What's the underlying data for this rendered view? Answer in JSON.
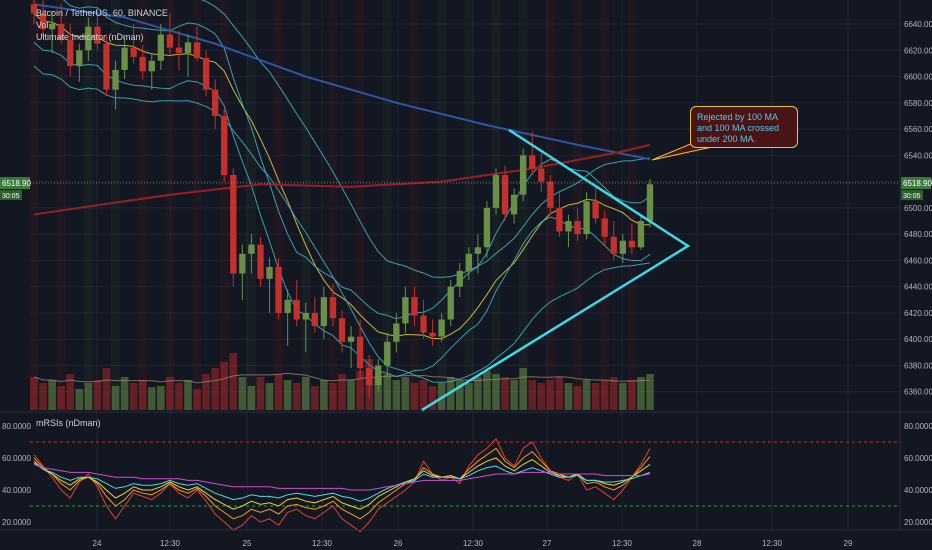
{
  "legend": {
    "symbol_line": "Bitcoin / TetherUS, 60, BINANCE",
    "vol_label": "Vol",
    "indicator_label": "Ultimate Indicator (nDman)"
  },
  "annotation": {
    "text_1": "Rejected by 100 MA",
    "text_2": "and 100 MA crossed",
    "text_3": "under 200 MA."
  },
  "rsi_pane": {
    "label": "mRSIs (nDman)"
  },
  "colors": {
    "background": "#131722",
    "grid": "#1f2433",
    "bull": "#6a8f47",
    "bear": "#c4302b",
    "triangle": "#3fd9e6",
    "ma100": "#2f55a8",
    "ma200": "#9a1e23",
    "callout_border": "#e8c43a"
  },
  "chart_data": {
    "type": "candlestick",
    "price_axis": {
      "min": 6350,
      "max": 6650,
      "ticks": [
        "6640.00",
        "6620.00",
        "6600.00",
        "6580.00",
        "6560.00",
        "6540.00",
        "6520.00",
        "6500.00",
        "6480.00",
        "6460.00",
        "6440.00",
        "6420.00",
        "6400.00",
        "6380.00",
        "6360.00"
      ]
    },
    "last_price": "6518.90",
    "countdown": "30:05",
    "time_axis": {
      "ticks": [
        "24",
        "12:30",
        "25",
        "12:30",
        "26",
        "12:30",
        "27",
        "12:30",
        "28",
        "12:30",
        "29"
      ]
    },
    "candles": [
      [
        6655,
        6665,
        6640,
        6648
      ],
      [
        6648,
        6660,
        6630,
        6636
      ],
      [
        6636,
        6650,
        6618,
        6640
      ],
      [
        6640,
        6655,
        6625,
        6628
      ],
      [
        6628,
        6640,
        6600,
        6608
      ],
      [
        6608,
        6625,
        6596,
        6620
      ],
      [
        6620,
        6645,
        6612,
        6638
      ],
      [
        6638,
        6652,
        6620,
        6625
      ],
      [
        6625,
        6632,
        6585,
        6590
      ],
      [
        6590,
        6612,
        6575,
        6605
      ],
      [
        6605,
        6630,
        6598,
        6622
      ],
      [
        6622,
        6640,
        6610,
        6615
      ],
      [
        6615,
        6624,
        6598,
        6604
      ],
      [
        6604,
        6618,
        6590,
        6612
      ],
      [
        6612,
        6640,
        6605,
        6632
      ],
      [
        6632,
        6648,
        6618,
        6622
      ],
      [
        6622,
        6635,
        6605,
        6618
      ],
      [
        6618,
        6632,
        6600,
        6626
      ],
      [
        6626,
        6638,
        6612,
        6614
      ],
      [
        6614,
        6620,
        6585,
        6590
      ],
      [
        6590,
        6598,
        6560,
        6570
      ],
      [
        6570,
        6575,
        6520,
        6525
      ],
      [
        6525,
        6530,
        6440,
        6450
      ],
      [
        6450,
        6472,
        6430,
        6465
      ],
      [
        6465,
        6480,
        6450,
        6472
      ],
      [
        6472,
        6478,
        6440,
        6446
      ],
      [
        6446,
        6462,
        6420,
        6455
      ],
      [
        6455,
        6462,
        6415,
        6420
      ],
      [
        6420,
        6438,
        6395,
        6430
      ],
      [
        6430,
        6445,
        6410,
        6415
      ],
      [
        6415,
        6428,
        6390,
        6420
      ],
      [
        6420,
        6432,
        6405,
        6410
      ],
      [
        6410,
        6440,
        6400,
        6432
      ],
      [
        6432,
        6442,
        6410,
        6416
      ],
      [
        6416,
        6422,
        6390,
        6398
      ],
      [
        6398,
        6410,
        6378,
        6402
      ],
      [
        6402,
        6415,
        6370,
        6378
      ],
      [
        6378,
        6388,
        6355,
        6365
      ],
      [
        6365,
        6385,
        6360,
        6380
      ],
      [
        6380,
        6405,
        6372,
        6398
      ],
      [
        6398,
        6420,
        6390,
        6412
      ],
      [
        6412,
        6440,
        6405,
        6432
      ],
      [
        6432,
        6440,
        6410,
        6418
      ],
      [
        6418,
        6430,
        6400,
        6405
      ],
      [
        6405,
        6415,
        6395,
        6402
      ],
      [
        6402,
        6420,
        6398,
        6415
      ],
      [
        6415,
        6445,
        6410,
        6440
      ],
      [
        6440,
        6458,
        6432,
        6452
      ],
      [
        6452,
        6470,
        6445,
        6465
      ],
      [
        6465,
        6480,
        6450,
        6470
      ],
      [
        6470,
        6505,
        6462,
        6500
      ],
      [
        6500,
        6530,
        6495,
        6525
      ],
      [
        6525,
        6532,
        6490,
        6495
      ],
      [
        6495,
        6515,
        6488,
        6510
      ],
      [
        6510,
        6545,
        6505,
        6540
      ],
      [
        6540,
        6558,
        6525,
        6530
      ],
      [
        6530,
        6542,
        6512,
        6520
      ],
      [
        6520,
        6525,
        6495,
        6500
      ],
      [
        6500,
        6512,
        6478,
        6482
      ],
      [
        6482,
        6495,
        6470,
        6490
      ],
      [
        6490,
        6500,
        6475,
        6480
      ],
      [
        6480,
        6512,
        6476,
        6505
      ],
      [
        6505,
        6515,
        6488,
        6492
      ],
      [
        6492,
        6498,
        6472,
        6478
      ],
      [
        6478,
        6490,
        6460,
        6465
      ],
      [
        6465,
        6480,
        6458,
        6475
      ],
      [
        6475,
        6488,
        6465,
        6470
      ],
      [
        6470,
        6495,
        6468,
        6490
      ],
      [
        6490,
        6522,
        6485,
        6518
      ]
    ],
    "ma100": [
      [
        0,
        6655
      ],
      [
        10,
        6645
      ],
      [
        20,
        6625
      ],
      [
        30,
        6600
      ],
      [
        40,
        6580
      ],
      [
        50,
        6563
      ],
      [
        60,
        6548
      ],
      [
        68,
        6537
      ]
    ],
    "ma200": [
      [
        0,
        6495
      ],
      [
        15,
        6510
      ],
      [
        25,
        6518
      ],
      [
        35,
        6516
      ],
      [
        45,
        6520
      ],
      [
        55,
        6530
      ],
      [
        65,
        6543
      ],
      [
        68,
        6548
      ]
    ],
    "volume": [
      0.55,
      0.45,
      0.5,
      0.4,
      0.6,
      0.35,
      0.45,
      0.5,
      0.7,
      0.4,
      0.55,
      0.45,
      0.5,
      0.38,
      0.4,
      0.55,
      0.45,
      0.5,
      0.35,
      0.6,
      0.7,
      0.8,
      0.95,
      0.55,
      0.4,
      0.55,
      0.45,
      0.6,
      0.5,
      0.45,
      0.55,
      0.4,
      0.5,
      0.45,
      0.6,
      0.5,
      0.65,
      0.85,
      0.55,
      0.6,
      0.5,
      0.55,
      0.45,
      0.5,
      0.4,
      0.45,
      0.55,
      0.5,
      0.45,
      0.55,
      0.65,
      0.6,
      0.55,
      0.5,
      0.7,
      0.5,
      0.45,
      0.5,
      0.55,
      0.45,
      0.4,
      0.5,
      0.45,
      0.5,
      0.55,
      0.45,
      0.5,
      0.55,
      0.6
    ],
    "rsi": {
      "axis_ticks": [
        "80.0000",
        "60.0000",
        "40.0000",
        "20.0000"
      ],
      "overbought": 70,
      "oversold": 30,
      "series": [
        {
          "color": "#e5402f",
          "values": [
            62,
            55,
            48,
            40,
            35,
            45,
            50,
            42,
            30,
            22,
            30,
            38,
            36,
            34,
            38,
            44,
            38,
            35,
            40,
            33,
            25,
            20,
            15,
            18,
            24,
            20,
            22,
            18,
            26,
            28,
            24,
            22,
            26,
            30,
            22,
            18,
            14,
            20,
            28,
            32,
            36,
            40,
            45,
            58,
            50,
            46,
            48,
            44,
            55,
            62,
            66,
            72,
            60,
            55,
            66,
            70,
            60,
            52,
            48,
            46,
            50,
            40,
            42,
            38,
            34,
            40,
            48,
            56,
            66
          ]
        },
        {
          "color": "#f59a23",
          "values": [
            60,
            54,
            50,
            44,
            40,
            46,
            48,
            44,
            36,
            30,
            34,
            40,
            38,
            37,
            40,
            44,
            40,
            38,
            41,
            36,
            30,
            26,
            22,
            24,
            28,
            26,
            28,
            25,
            30,
            31,
            29,
            28,
            30,
            33,
            28,
            25,
            22,
            26,
            32,
            36,
            40,
            44,
            46,
            54,
            50,
            48,
            49,
            47,
            53,
            58,
            62,
            66,
            58,
            54,
            60,
            64,
            58,
            52,
            50,
            48,
            50,
            44,
            45,
            42,
            40,
            43,
            48,
            54,
            61
          ]
        },
        {
          "color": "#e8d53a",
          "values": [
            58,
            53,
            50,
            46,
            43,
            47,
            48,
            45,
            40,
            35,
            38,
            42,
            40,
            40,
            42,
            45,
            42,
            40,
            42,
            38,
            34,
            31,
            28,
            30,
            33,
            31,
            32,
            30,
            34,
            35,
            33,
            32,
            34,
            36,
            32,
            30,
            28,
            31,
            36,
            39,
            42,
            45,
            47,
            52,
            49,
            48,
            49,
            47,
            51,
            55,
            58,
            60,
            55,
            52,
            56,
            59,
            55,
            51,
            49,
            48,
            50,
            46,
            46,
            44,
            43,
            45,
            48,
            52,
            56
          ]
        },
        {
          "color": "#55d6e0",
          "values": [
            57,
            53,
            51,
            48,
            46,
            48,
            48,
            47,
            44,
            41,
            42,
            44,
            43,
            43,
            44,
            46,
            44,
            43,
            44,
            41,
            38,
            36,
            34,
            35,
            37,
            36,
            36,
            35,
            37,
            38,
            37,
            36,
            37,
            38,
            36,
            35,
            33,
            35,
            38,
            41,
            43,
            45,
            46,
            50,
            48,
            48,
            48,
            47,
            49,
            52,
            54,
            55,
            52,
            50,
            52,
            54,
            52,
            50,
            48,
            48,
            49,
            46,
            46,
            45,
            45,
            46,
            47,
            49,
            51
          ]
        },
        {
          "color": "#d14bd6",
          "values": [
            56,
            54,
            53,
            52,
            51,
            51,
            51,
            50,
            49,
            48,
            48,
            48,
            47,
            47,
            47,
            47,
            47,
            46,
            46,
            45,
            44,
            43,
            42,
            42,
            42,
            42,
            42,
            41,
            41,
            41,
            41,
            41,
            41,
            41,
            41,
            40,
            40,
            40,
            41,
            42,
            43,
            44,
            45,
            46,
            46,
            46,
            46,
            46,
            47,
            48,
            49,
            50,
            50,
            50,
            51,
            51,
            51,
            51,
            50,
            50,
            50,
            50,
            50,
            49,
            49,
            49,
            49,
            49,
            50
          ]
        }
      ]
    }
  }
}
